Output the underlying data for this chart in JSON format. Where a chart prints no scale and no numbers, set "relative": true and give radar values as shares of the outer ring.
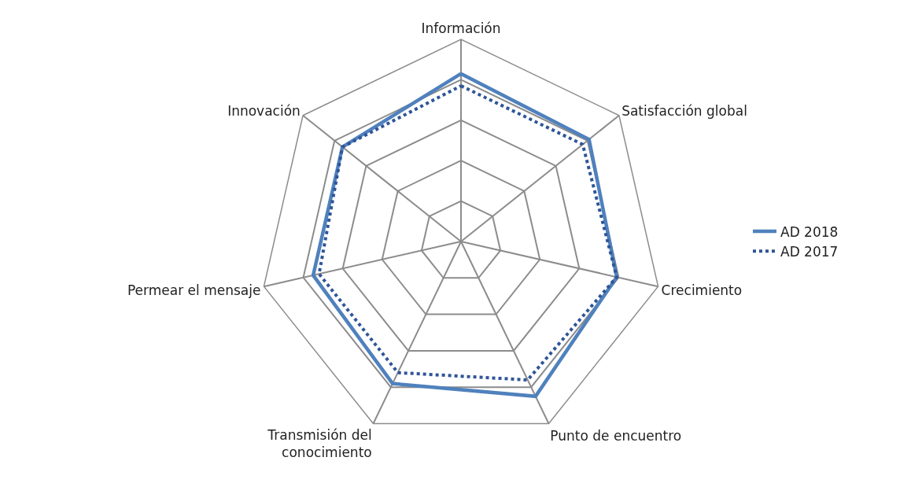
{
  "chart_data": {
    "type": "radar",
    "relative": true,
    "grid": true,
    "legend": "right",
    "marker": "none",
    "categories": [
      "Información",
      "Satisfacción global",
      "Crecimiento",
      "Punto de encuentro",
      "Transmisión del conocimiento",
      "Permear el mensaje",
      "Innovación"
    ],
    "series": [
      {
        "name": "AD 2018",
        "color": "#4f81bd",
        "line_style": "solid",
        "values": [
          0.83,
          0.81,
          0.79,
          0.85,
          0.78,
          0.75,
          0.75
        ]
      },
      {
        "name": "AD 2017",
        "color": "#2f5597",
        "line_style": "dotted",
        "values": [
          0.77,
          0.77,
          0.79,
          0.76,
          0.72,
          0.72,
          0.75
        ]
      }
    ]
  }
}
